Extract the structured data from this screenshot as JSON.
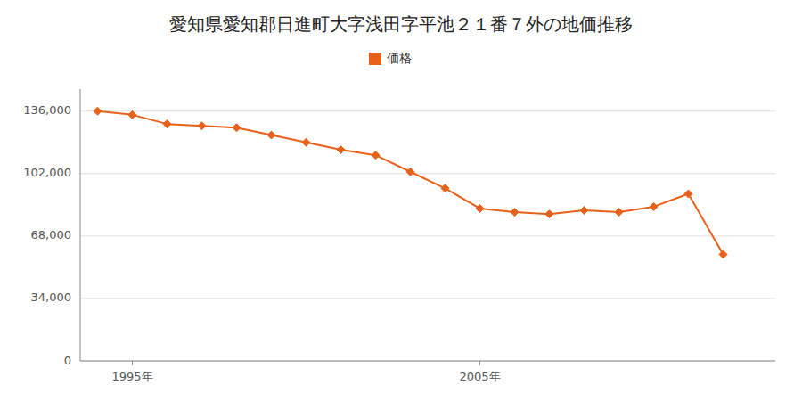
{
  "chart_data": {
    "type": "line",
    "title": "愛知県愛知郡日進町大字浅田字平池２１番７外の地価推移",
    "x": [
      1994,
      1995,
      1996,
      1997,
      1998,
      1999,
      2000,
      2001,
      2002,
      2003,
      2004,
      2005,
      2006,
      2007,
      2008,
      2009,
      2010,
      2011,
      2012
    ],
    "series": [
      {
        "name": "価格",
        "color": "#e8611a",
        "marker": "diamond",
        "values": [
          136000,
          134000,
          129000,
          128000,
          127000,
          123000,
          119000,
          115000,
          112000,
          103000,
          94000,
          83000,
          81000,
          80000,
          82000,
          81000,
          84000,
          91000,
          58000
        ]
      }
    ],
    "xlim": [
      1993.5,
      2013.5
    ],
    "xticks": [
      {
        "value": 1995,
        "label": "1995年"
      },
      {
        "value": 2005,
        "label": "2005年"
      }
    ],
    "ylim": [
      0,
      148000
    ],
    "yticks": [
      0,
      {
        "value": 34000,
        "label": "34,000"
      },
      {
        "value": 68000,
        "label": "68,000"
      },
      {
        "value": 102000,
        "label": "102,000"
      },
      {
        "value": 136000,
        "label": "136,000"
      }
    ],
    "grid": true,
    "legend": "top"
  }
}
